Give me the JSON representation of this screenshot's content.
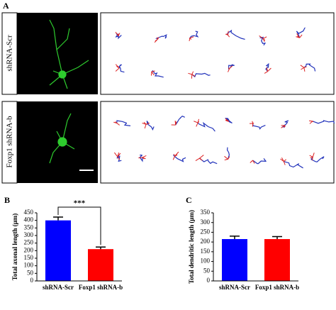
{
  "panel_a": {
    "label": "A",
    "rows": [
      "shRNA-Scr",
      "Foxp1 shRNA-b"
    ]
  },
  "chart_data": [
    {
      "type": "bar",
      "label": "B",
      "ylabel": "Total axonal length (μm)",
      "categories": [
        "shRNA-Scr",
        "Foxp1 shRNA-b"
      ],
      "values": [
        400,
        210
      ],
      "errors": [
        22,
        14
      ],
      "colors": [
        "#0000ff",
        "#ff0000"
      ],
      "ylim": [
        0,
        450
      ],
      "yticks": [
        0,
        50,
        100,
        150,
        200,
        250,
        300,
        350,
        400,
        450
      ],
      "annotation": "***"
    },
    {
      "type": "bar",
      "label": "C",
      "ylabel": "Total dendritic length (μm)",
      "categories": [
        "shRNA-Scr",
        "Foxp1 shRNA-b"
      ],
      "values": [
        215,
        215
      ],
      "errors": [
        15,
        13
      ],
      "colors": [
        "#0000ff",
        "#ff0000"
      ],
      "ylim": [
        0,
        350
      ],
      "yticks": [
        0,
        50,
        100,
        150,
        200,
        250,
        300,
        350
      ]
    }
  ]
}
